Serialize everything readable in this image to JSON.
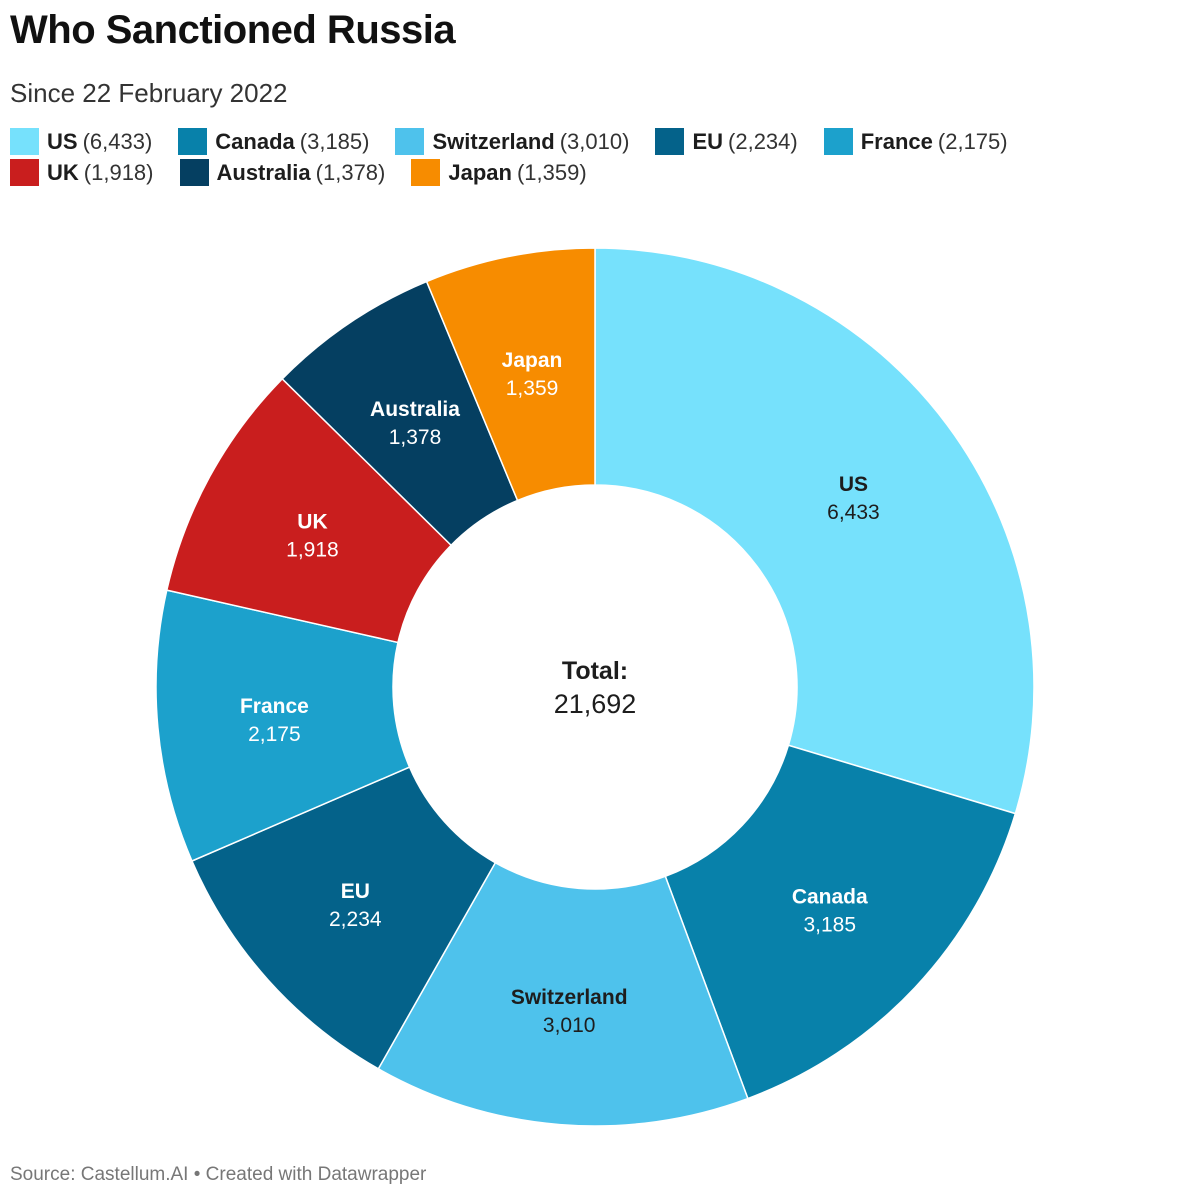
{
  "title": "Who Sanctioned Russia",
  "subtitle": "Since 22 February 2022",
  "source": "Source: Castellum.AI • Created with Datawrapper",
  "chart_data": {
    "type": "pie",
    "donut": true,
    "title": "Who Sanctioned Russia",
    "subtitle": "Since 22 February 2022",
    "legend_position": "top",
    "center_label": "Total:",
    "center_value": "21,692",
    "total": 21692,
    "slices": [
      {
        "name": "US",
        "value": 6433,
        "label": "6,433",
        "legend": "(6,433)",
        "color": "#76e1fc",
        "text_color": "#1d1d1d"
      },
      {
        "name": "Canada",
        "value": 3185,
        "label": "3,185",
        "legend": "(3,185)",
        "color": "#0881aa",
        "text_color": "#ffffff"
      },
      {
        "name": "Switzerland",
        "value": 3010,
        "label": "3,010",
        "legend": "(3,010)",
        "color": "#4ec2ec",
        "text_color": "#1d1d1d"
      },
      {
        "name": "EU",
        "value": 2234,
        "label": "2,234",
        "legend": "(2,234)",
        "color": "#04628a",
        "text_color": "#ffffff"
      },
      {
        "name": "France",
        "value": 2175,
        "label": "2,175",
        "legend": "(2,175)",
        "color": "#1ca1cc",
        "text_color": "#ffffff"
      },
      {
        "name": "UK",
        "value": 1918,
        "label": "1,918",
        "legend": "(1,918)",
        "color": "#c91e1e",
        "text_color": "#ffffff"
      },
      {
        "name": "Australia",
        "value": 1378,
        "label": "1,378",
        "legend": "(1,378)",
        "color": "#053f61",
        "text_color": "#ffffff"
      },
      {
        "name": "Japan",
        "value": 1359,
        "label": "1,359",
        "legend": "(1,359)",
        "color": "#f78c00",
        "text_color": "#ffffff"
      }
    ]
  }
}
